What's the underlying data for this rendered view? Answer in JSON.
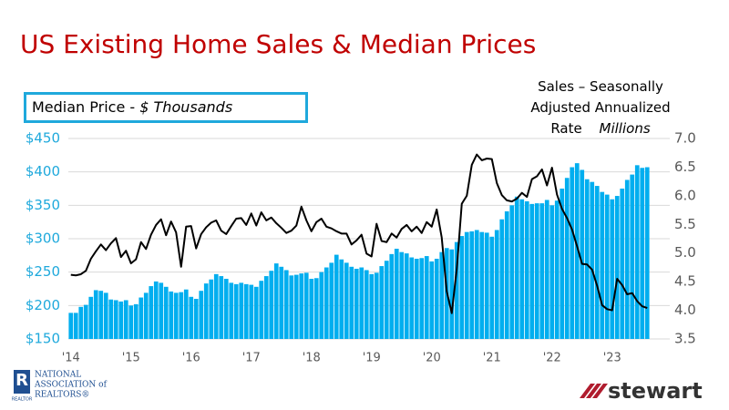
{
  "chart_data": {
    "type": "combo",
    "title": "US Existing Home Sales & Median Prices",
    "ylabel": {
      "text": "Median Price -",
      "unit": "$ Thousands"
    },
    "y2label": {
      "text": "Sales – Seasonally Adjusted Annualized Rate",
      "unit": "Millions"
    },
    "categories": [
      "'14",
      null,
      null,
      null,
      null,
      null,
      null,
      null,
      null,
      null,
      null,
      null,
      "'15",
      null,
      null,
      null,
      null,
      null,
      null,
      null,
      null,
      null,
      null,
      null,
      "'16",
      null,
      null,
      null,
      null,
      null,
      null,
      null,
      null,
      null,
      null,
      null,
      "'17",
      null,
      null,
      null,
      null,
      null,
      null,
      null,
      null,
      null,
      null,
      null,
      "'18",
      null,
      null,
      null,
      null,
      null,
      null,
      null,
      null,
      null,
      null,
      null,
      "'19",
      null,
      null,
      null,
      null,
      null,
      null,
      null,
      null,
      null,
      null,
      null,
      "'20",
      null,
      null,
      null,
      null,
      null,
      null,
      null,
      null,
      null,
      null,
      null,
      "'21",
      null,
      null,
      null,
      null,
      null,
      null,
      null,
      null,
      null,
      null,
      null,
      "'22",
      null,
      null,
      null,
      null,
      null,
      null,
      null,
      null,
      null,
      null,
      null,
      "'23",
      null,
      null,
      null,
      null,
      null,
      null,
      null,
      null,
      null,
      null,
      null
    ],
    "ylim": [
      150,
      450
    ],
    "yticks": [
      {
        "value": 150,
        "label": "$150"
      },
      {
        "value": 200,
        "label": "$200"
      },
      {
        "value": 250,
        "label": "$250"
      },
      {
        "value": 300,
        "label": "$300"
      },
      {
        "value": 350,
        "label": "$350"
      },
      {
        "value": 400,
        "label": "$400"
      },
      {
        "value": 450,
        "label": "$450"
      }
    ],
    "y2lim": [
      3.5,
      7
    ],
    "y2ticks": [
      3.5,
      {
        "value": 4,
        "label": "4.0"
      },
      4.5,
      {
        "value": 5,
        "label": "5.0"
      },
      5.5,
      {
        "value": 6,
        "label": "6.0"
      },
      6.5,
      {
        "value": 7,
        "label": "7.0"
      }
    ],
    "grid": true,
    "series": [
      {
        "type": "bar",
        "color": "#00aeef",
        "values": [
          189,
          189,
          198,
          201,
          213,
          223,
          222,
          219,
          209,
          208,
          206,
          208,
          200,
          202,
          212,
          219,
          229,
          236,
          234,
          228,
          221,
          219,
          220,
          224,
          213,
          210,
          222,
          233,
          239,
          247,
          244,
          240,
          234,
          232,
          234,
          232,
          231,
          228,
          237,
          244,
          252,
          263,
          258,
          253,
          245,
          246,
          248,
          249,
          240,
          241,
          250,
          257,
          264,
          276,
          269,
          264,
          258,
          255,
          257,
          253,
          247,
          249,
          259,
          267,
          277,
          285,
          280,
          278,
          272,
          270,
          271,
          274,
          266,
          270,
          280,
          286,
          284,
          295,
          304,
          310,
          311,
          313,
          310,
          309,
          303,
          313,
          329,
          341,
          350,
          363,
          359,
          356,
          352,
          353,
          353,
          358,
          350,
          357,
          375,
          391,
          407,
          413,
          403,
          389,
          385,
          379,
          370,
          366,
          359,
          364,
          375,
          388,
          396,
          410,
          406,
          407,
          null,
          null,
          null,
          null
        ]
      },
      {
        "type": "line",
        "axis": "y2",
        "color": "#000000",
        "values": [
          4.62,
          4.61,
          4.63,
          4.69,
          4.9,
          5.03,
          5.15,
          5.05,
          5.17,
          5.26,
          4.93,
          5.04,
          4.82,
          4.89,
          5.19,
          5.07,
          5.32,
          5.49,
          5.59,
          5.31,
          5.55,
          5.36,
          4.76,
          5.46,
          5.47,
          5.08,
          5.33,
          5.45,
          5.53,
          5.57,
          5.39,
          5.33,
          5.47,
          5.6,
          5.61,
          5.49,
          5.69,
          5.48,
          5.71,
          5.57,
          5.62,
          5.52,
          5.44,
          5.35,
          5.39,
          5.48,
          5.81,
          5.57,
          5.38,
          5.54,
          5.6,
          5.46,
          5.43,
          5.38,
          5.34,
          5.34,
          5.15,
          5.22,
          5.32,
          4.99,
          4.94,
          5.51,
          5.21,
          5.19,
          5.34,
          5.27,
          5.42,
          5.49,
          5.38,
          5.46,
          5.35,
          5.54,
          5.46,
          5.76,
          5.27,
          4.33,
          3.95,
          4.72,
          5.86,
          6.0,
          6.54,
          6.72,
          6.62,
          6.65,
          6.64,
          6.22,
          6.01,
          5.92,
          5.9,
          5.95,
          6.05,
          5.98,
          6.29,
          6.34,
          6.46,
          6.18,
          6.49,
          6.02,
          5.77,
          5.61,
          5.41,
          5.12,
          4.81,
          4.8,
          4.71,
          4.43,
          4.09,
          4.02,
          4.0,
          4.55,
          4.44,
          4.28,
          4.3,
          4.16,
          4.07,
          4.04,
          null,
          null,
          null,
          null
        ]
      }
    ]
  },
  "logos": {
    "nar": [
      "NATIONAL",
      "ASSOCIATION of",
      "REALTORS®"
    ],
    "nar_small": "REALTOR",
    "stewart": "stewart"
  }
}
